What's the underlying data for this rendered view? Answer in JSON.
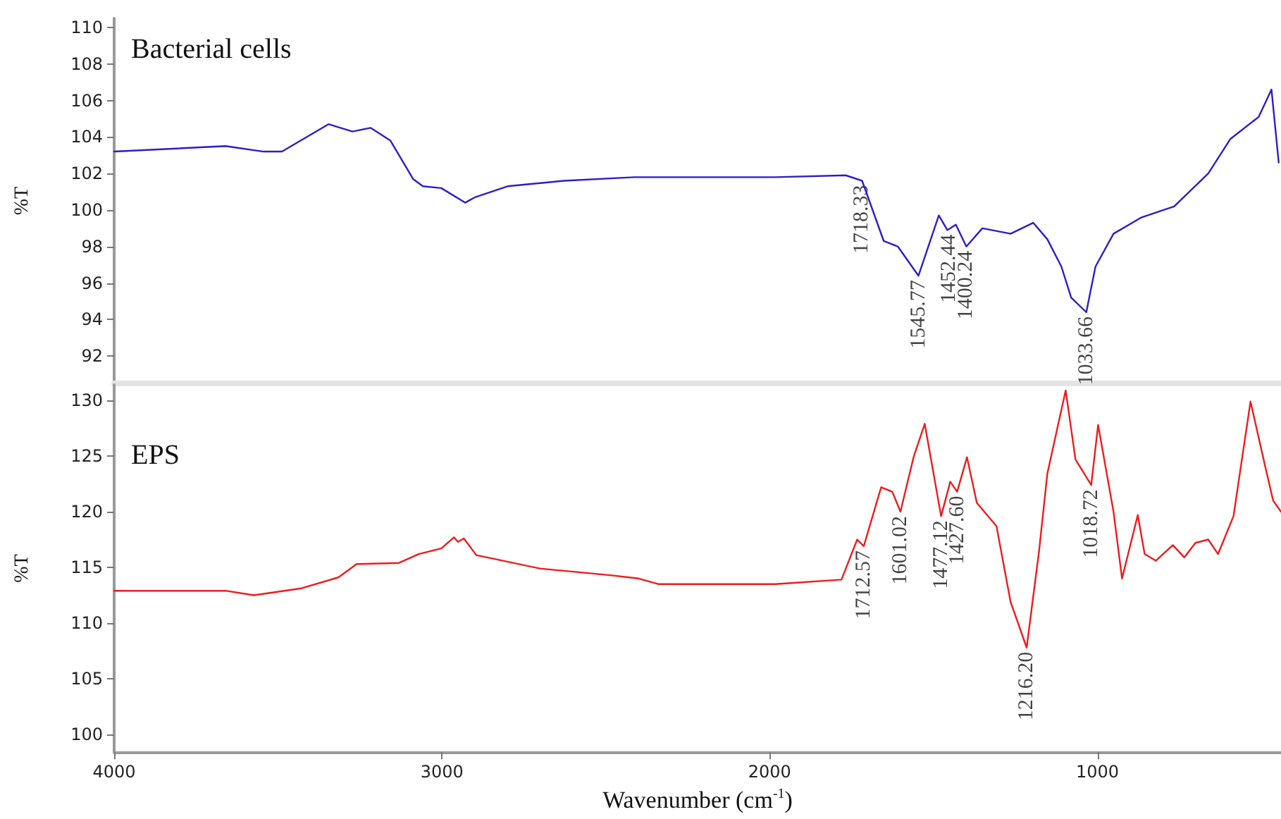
{
  "chart_data": [
    {
      "type": "line",
      "title": "Bacterial cells",
      "ylabel": "%T",
      "xlim": [
        4000,
        440
      ],
      "xticks": [
        4000,
        3000,
        2000,
        1000
      ],
      "ylim": [
        90.5,
        110.5
      ],
      "yticks": [
        92,
        94,
        96,
        98,
        100,
        102,
        104,
        106,
        108,
        110
      ],
      "tick_labels": "y",
      "grid": false,
      "legend": false,
      "marker": "none",
      "series": [
        {
          "color": "#2b1fc8",
          "x": [
            4000,
            3660,
            3544,
            3488,
            3346,
            3273,
            3217,
            3157,
            3088,
            3058,
            3002,
            2929,
            2899,
            2800,
            2628,
            2413,
            2198,
            1983,
            1768,
            1718,
            1652,
            1609,
            1546,
            1484,
            1458,
            1432,
            1400,
            1351,
            1265,
            1196,
            1153,
            1110,
            1080,
            1034,
            1006,
            951,
            865,
            766,
            662,
            594,
            508,
            469,
            447
          ],
          "values": [
            103.2,
            103.5,
            103.2,
            103.2,
            104.7,
            104.3,
            104.5,
            103.8,
            101.7,
            101.3,
            101.2,
            100.4,
            100.7,
            101.3,
            101.6,
            101.8,
            101.8,
            101.8,
            101.9,
            101.6,
            98.3,
            98.0,
            96.4,
            99.7,
            98.9,
            99.2,
            98.0,
            99.0,
            98.7,
            99.3,
            98.4,
            96.9,
            95.2,
            94.4,
            96.9,
            98.7,
            99.6,
            100.2,
            102.0,
            103.9,
            105.1,
            106.6,
            102.6
          ]
        }
      ],
      "annotations": [
        {
          "text": "1718.33",
          "x": 1718.33,
          "y": 101.6
        },
        {
          "text": "1545.77",
          "x": 1545.77,
          "y": 96.4
        },
        {
          "text": "1452.44",
          "x": 1452.44,
          "y": 98.9
        },
        {
          "text": "1400.24",
          "x": 1400.24,
          "y": 98.0
        },
        {
          "text": "1033.66",
          "x": 1033.66,
          "y": 94.4
        }
      ]
    },
    {
      "type": "line",
      "title": "EPS",
      "ylabel": "%T",
      "xlabel": "Wavenumber (cm$^{-1}$)",
      "xlim": [
        4000,
        440
      ],
      "xticks": [
        4000,
        3000,
        2000,
        1000
      ],
      "ylim": [
        98.4,
        131.4
      ],
      "yticks": [
        100,
        105,
        110,
        115,
        120,
        125,
        130
      ],
      "grid": false,
      "legend": false,
      "marker": "none",
      "series": [
        {
          "color": "#ee1c1c",
          "x": [
            4000,
            3660,
            3574,
            3432,
            3316,
            3260,
            3131,
            3071,
            3002,
            2963,
            2951,
            2933,
            2895,
            2701,
            2486,
            2400,
            2340,
            1983,
            1781,
            1733,
            1713,
            1660,
            1626,
            1601,
            1561,
            1527,
            1477,
            1449,
            1428,
            1398,
            1368,
            1308,
            1265,
            1216,
            1178,
            1153,
            1097,
            1067,
            1019,
            998,
            951,
            925,
            877,
            856,
            822,
            770,
            735,
            701,
            662,
            632,
            585,
            533,
            490,
            464,
            440
          ],
          "values": [
            112.9,
            112.9,
            112.5,
            113.1,
            114.1,
            115.3,
            115.4,
            116.2,
            116.7,
            117.7,
            117.3,
            117.6,
            116.1,
            114.9,
            114.3,
            114.0,
            113.5,
            113.5,
            113.9,
            117.5,
            116.9,
            122.2,
            121.8,
            120.0,
            124.9,
            127.9,
            119.6,
            122.7,
            121.8,
            124.9,
            120.8,
            118.7,
            111.9,
            107.8,
            116.5,
            123.4,
            130.9,
            124.7,
            122.4,
            127.8,
            120.0,
            114.0,
            119.7,
            116.2,
            115.6,
            117.0,
            115.9,
            117.2,
            117.5,
            116.2,
            119.6,
            129.9,
            124.3,
            121.0,
            120.0
          ]
        }
      ],
      "annotations": [
        {
          "text": "1712.57",
          "x": 1712.57,
          "y": 116.9
        },
        {
          "text": "1601.02",
          "x": 1601.02,
          "y": 120.0
        },
        {
          "text": "1477.12",
          "x": 1477.12,
          "y": 119.6
        },
        {
          "text": "1427.60",
          "x": 1427.6,
          "y": 121.8
        },
        {
          "text": "1216.20",
          "x": 1216.2,
          "y": 107.8
        },
        {
          "text": "1018.72",
          "x": 1018.72,
          "y": 122.4
        }
      ]
    }
  ]
}
